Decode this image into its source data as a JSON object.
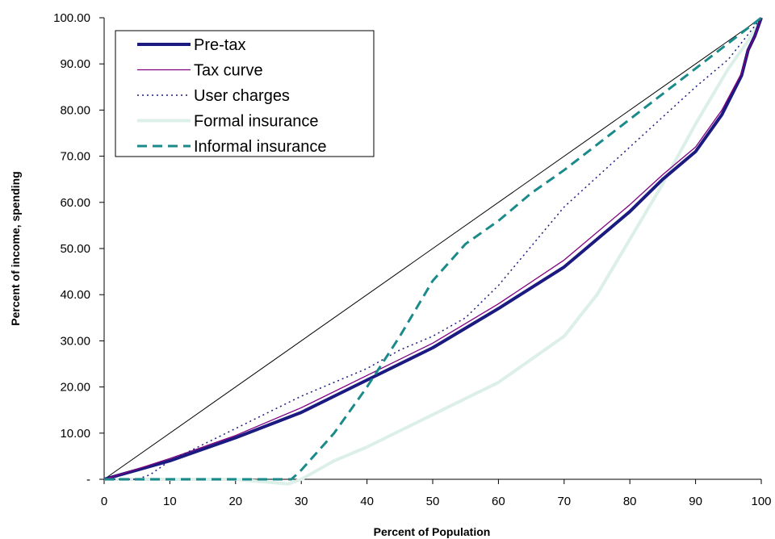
{
  "chart_data": {
    "type": "line",
    "title": "",
    "xlabel": "Percent of Population",
    "ylabel": "Percent of income, spending",
    "xlim": [
      0,
      100
    ],
    "ylim": [
      0,
      100
    ],
    "x_ticks": [
      {
        "value": 0,
        "label": "0"
      },
      {
        "value": 10,
        "label": "10"
      },
      {
        "value": 20,
        "label": "20"
      },
      {
        "value": 30,
        "label": "30"
      },
      {
        "value": 40,
        "label": "40"
      },
      {
        "value": 50,
        "label": "50"
      },
      {
        "value": 60,
        "label": "60"
      },
      {
        "value": 70,
        "label": "70"
      },
      {
        "value": 80,
        "label": "80"
      },
      {
        "value": 90,
        "label": "90"
      },
      {
        "value": 100,
        "label": "100"
      }
    ],
    "y_ticks": [
      {
        "value": 0,
        "label": "-"
      },
      {
        "value": 10,
        "label": "10.00"
      },
      {
        "value": 20,
        "label": "20.00"
      },
      {
        "value": 30,
        "label": "30.00"
      },
      {
        "value": 40,
        "label": "40.00"
      },
      {
        "value": 50,
        "label": "50.00"
      },
      {
        "value": 60,
        "label": "60.00"
      },
      {
        "value": 70,
        "label": "70.00"
      },
      {
        "value": 80,
        "label": "80.00"
      },
      {
        "value": 90,
        "label": "90.00"
      },
      {
        "value": 100,
        "label": "100.00"
      }
    ],
    "grid": false,
    "legend_position": "top-left",
    "equality_line": {
      "x": [
        0,
        100
      ],
      "y": [
        0,
        100
      ],
      "color": "#000000"
    },
    "series": [
      {
        "name": "Pre-tax",
        "color": "#1a1a80",
        "style": "solid-thick",
        "x": [
          0,
          5,
          10,
          20,
          30,
          40,
          50,
          60,
          70,
          80,
          85,
          90,
          94,
          97,
          98,
          99,
          100
        ],
        "y": [
          0,
          2,
          4,
          9,
          14.5,
          21.5,
          28.5,
          37,
          46,
          58,
          65,
          71,
          79,
          87.5,
          93,
          96,
          100
        ]
      },
      {
        "name": "Tax curve",
        "color": "#800080",
        "style": "solid-thin",
        "x": [
          0,
          5,
          10,
          20,
          30,
          40,
          50,
          60,
          70,
          80,
          85,
          90,
          94,
          97,
          98,
          99,
          100
        ],
        "y": [
          0,
          2.2,
          4.5,
          9.5,
          15.5,
          22.5,
          29.5,
          38,
          47.5,
          59.5,
          66,
          72,
          80,
          88,
          93,
          96,
          100
        ]
      },
      {
        "name": "User charges",
        "color": "#1a1a80",
        "style": "dotted",
        "x": [
          0,
          5,
          7,
          10,
          20,
          30,
          40,
          45,
          50,
          55,
          60,
          70,
          80,
          90,
          95,
          100
        ],
        "y": [
          0,
          0,
          1,
          4,
          11,
          18,
          24,
          28,
          31,
          35,
          42,
          59,
          72,
          85,
          91,
          100
        ]
      },
      {
        "name": "Formal insurance",
        "color": "#dcefe9",
        "style": "solid-thick",
        "x": [
          0,
          20,
          28,
          30,
          35,
          40,
          50,
          60,
          70,
          75,
          80,
          85,
          90,
          95,
          98,
          100
        ],
        "y": [
          0,
          0,
          -1,
          0,
          4,
          7,
          14,
          21,
          31,
          40,
          52,
          64,
          77,
          89,
          95,
          100
        ]
      },
      {
        "name": "Informal insurance",
        "color": "#1a8a8a",
        "style": "dashed",
        "x": [
          0,
          20,
          28.5,
          30,
          35,
          40,
          45,
          50,
          55,
          60,
          65,
          70,
          80,
          90,
          100
        ],
        "y": [
          0,
          0,
          0,
          2,
          10,
          20,
          31,
          43,
          51,
          56,
          62,
          67,
          78,
          89,
          100
        ]
      }
    ]
  }
}
